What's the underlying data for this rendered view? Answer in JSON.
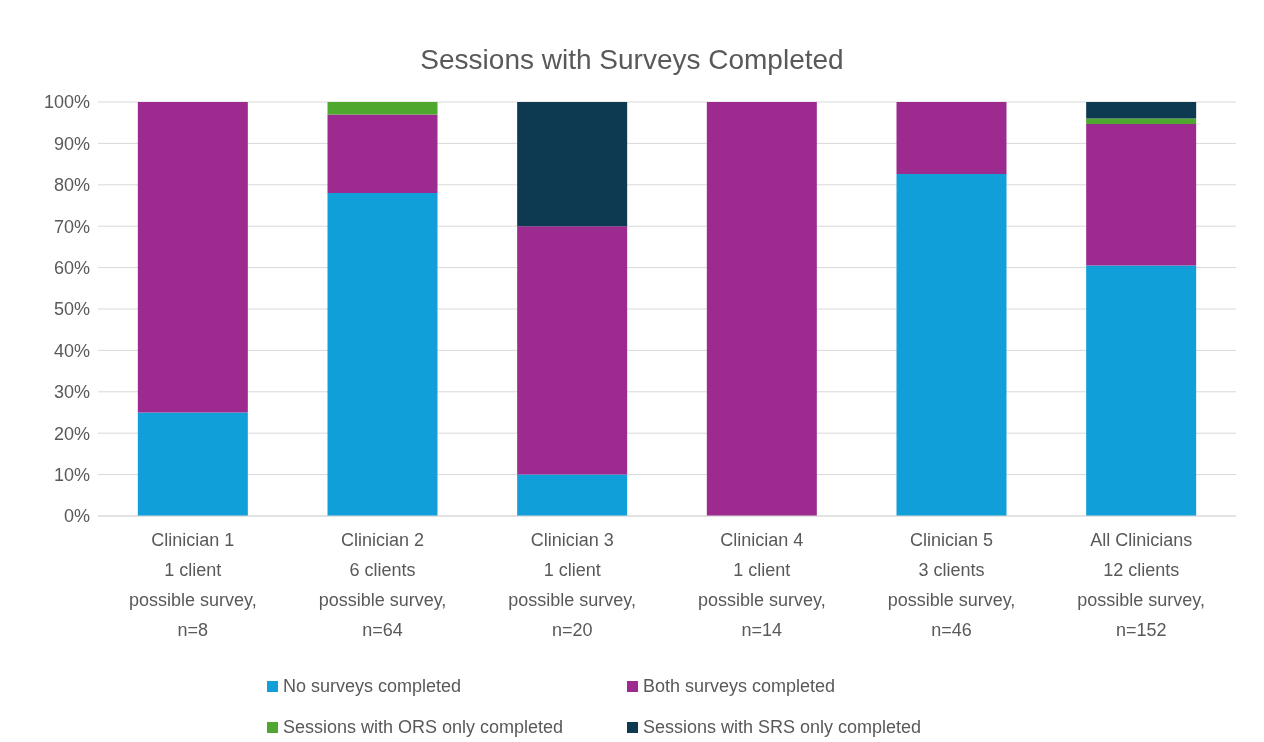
{
  "chart_data": {
    "type": "bar",
    "title": "Sessions with Surveys Completed",
    "stacked": true,
    "categories": [
      "Clinician 1\n1 client\npossible survey,\nn=8",
      "Clinician 2\n6 clients\npossible survey,\nn=64",
      "Clinician 3\n1 client\npossible survey,\nn=20",
      "Clinician 4\n1 client\npossible survey,\nn=14",
      "Clinician 5\n3 clients\npossible survey,\nn=46",
      "All Clinicians\n12 clients\npossible survey,\nn=152"
    ],
    "series": [
      {
        "name": "No surveys completed",
        "color": "#109fd8",
        "values": [
          25,
          78,
          10,
          0,
          82.6,
          60.5
        ]
      },
      {
        "name": "Both surveys completed",
        "color": "#9c2a8f",
        "values": [
          75,
          19,
          60,
          100,
          17.4,
          34.2
        ]
      },
      {
        "name": "Sessions with ORS only completed",
        "color": "#4ea72e",
        "values": [
          0,
          3,
          0,
          0,
          0,
          1.3
        ]
      },
      {
        "name": "Sessions with SRS only completed",
        "color": "#0e3a51",
        "values": [
          0,
          0,
          30,
          0,
          0,
          4
        ]
      }
    ],
    "ylim": [
      0,
      100
    ],
    "yticks": [
      {
        "value": 0,
        "label": "0%"
      },
      {
        "value": 10,
        "label": "10%"
      },
      {
        "value": 20,
        "label": "20%"
      },
      {
        "value": 30,
        "label": "30%"
      },
      {
        "value": 40,
        "label": "40%"
      },
      {
        "value": 50,
        "label": "50%"
      },
      {
        "value": 60,
        "label": "60%"
      },
      {
        "value": 70,
        "label": "70%"
      },
      {
        "value": 80,
        "label": "80%"
      },
      {
        "value": 90,
        "label": "90%"
      },
      {
        "value": 100,
        "label": "100%"
      }
    ],
    "grid": "y",
    "legend": "bottom"
  }
}
